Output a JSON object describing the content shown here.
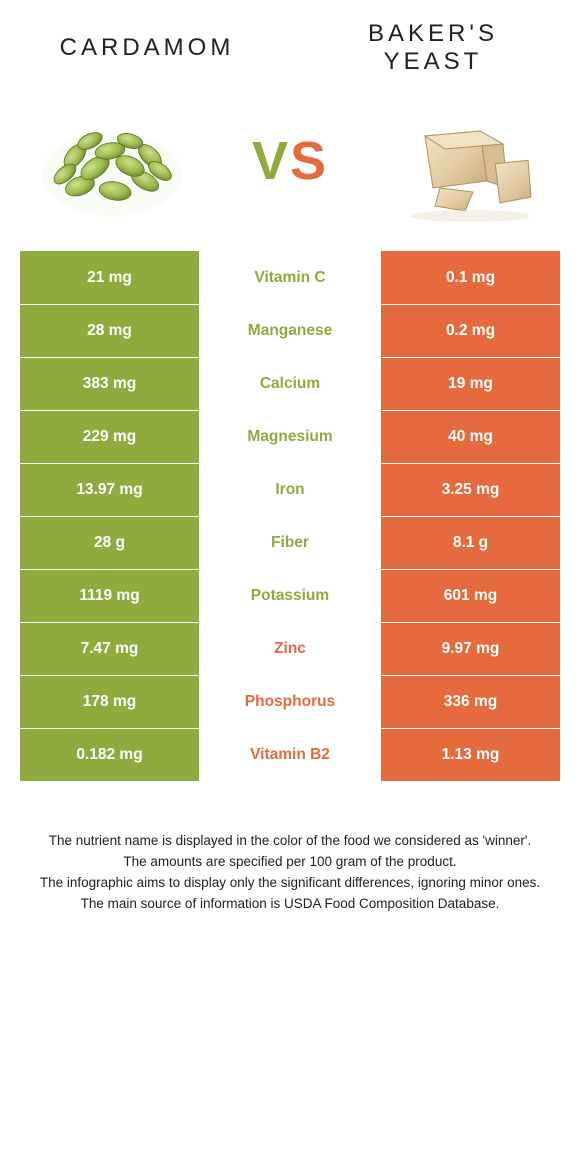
{
  "header": {
    "left_title": "Cardamom",
    "right_title": "Baker's Yeast",
    "vs_v": "V",
    "vs_s": "S"
  },
  "colors": {
    "green": "#8fab3e",
    "orange": "#e56b3e",
    "green_text": "#8fab3e",
    "orange_text": "#e56b3e",
    "white": "#ffffff",
    "text": "#212121"
  },
  "table": {
    "rows": [
      {
        "left": "21 mg",
        "label": "Vitamin C",
        "right": "0.1 mg",
        "winner": "left"
      },
      {
        "left": "28 mg",
        "label": "Manganese",
        "right": "0.2 mg",
        "winner": "left"
      },
      {
        "left": "383 mg",
        "label": "Calcium",
        "right": "19 mg",
        "winner": "left"
      },
      {
        "left": "229 mg",
        "label": "Magnesium",
        "right": "40 mg",
        "winner": "left"
      },
      {
        "left": "13.97 mg",
        "label": "Iron",
        "right": "3.25 mg",
        "winner": "left"
      },
      {
        "left": "28 g",
        "label": "Fiber",
        "right": "8.1 g",
        "winner": "left"
      },
      {
        "left": "1119 mg",
        "label": "Potassium",
        "right": "601 mg",
        "winner": "left"
      },
      {
        "left": "7.47 mg",
        "label": "Zinc",
        "right": "9.97 mg",
        "winner": "right"
      },
      {
        "left": "178 mg",
        "label": "Phosphorus",
        "right": "336 mg",
        "winner": "right"
      },
      {
        "left": "0.182 mg",
        "label": "Vitamin B2",
        "right": "1.13 mg",
        "winner": "right"
      }
    ]
  },
  "footer": {
    "l1": "The nutrient name is displayed in the color of the food we considered as 'winner'.",
    "l2": "The amounts are specified per 100 gram of the product.",
    "l3": "The infographic aims to display only the significant differences, ignoring minor ones.",
    "l4": "The main source of information is USDA Food Composition Database."
  }
}
